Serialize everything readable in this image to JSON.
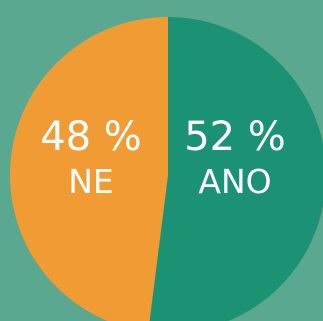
{
  "chart_data": {
    "type": "pie",
    "slices": [
      {
        "label": "ANO",
        "value": 52,
        "value_text": "52 %",
        "color": "#1c9275"
      },
      {
        "label": "NE",
        "value": 48,
        "value_text": "48 %",
        "color": "#f19b35"
      }
    ],
    "start": "top",
    "direction": "clockwise",
    "background_color": "#5aa88f"
  }
}
